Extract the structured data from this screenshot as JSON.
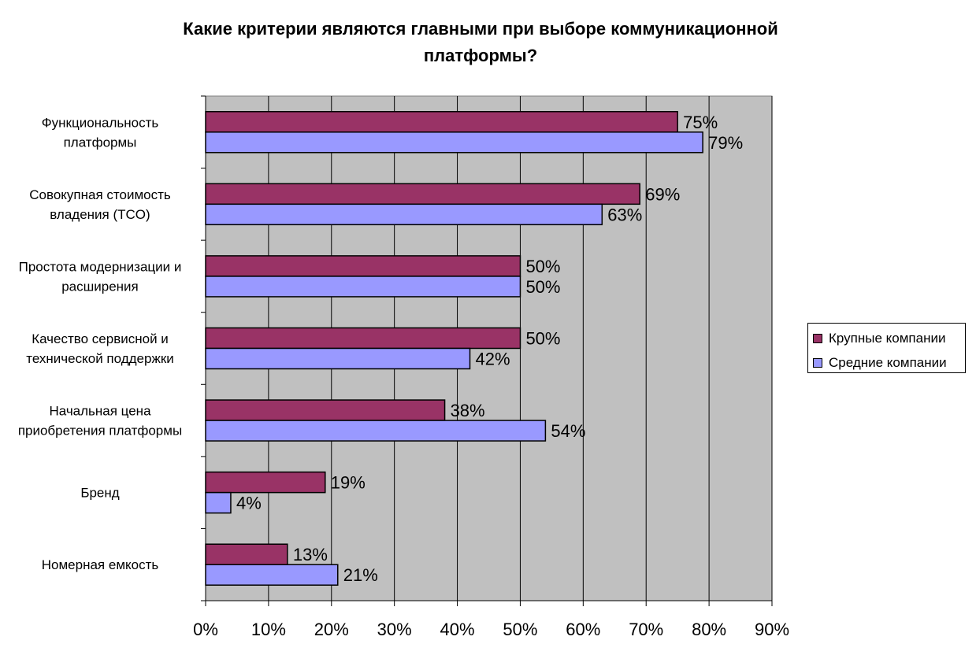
{
  "chart_data": {
    "type": "bar",
    "orientation": "horizontal",
    "title": [
      "Какие критерии являются главными при выборе коммуникационной",
      "платформы?"
    ],
    "categories": [
      [
        "Функциональность",
        "платформы"
      ],
      [
        "Совокупная стоимость",
        "владения (TCO)"
      ],
      [
        "Простота модернизации и",
        "расширения"
      ],
      [
        "Качество сервисной и",
        "технической поддержки"
      ],
      [
        "Начальная цена",
        "приобретения платформы"
      ],
      [
        "Бренд"
      ],
      [
        "Номерная емкость"
      ]
    ],
    "series": [
      {
        "name": "Крупные компании",
        "color": "#993366",
        "values": [
          75,
          69,
          50,
          50,
          38,
          19,
          13
        ],
        "labels": [
          "75%",
          "69%",
          "50%",
          "50%",
          "38%",
          "19%",
          "13%"
        ]
      },
      {
        "name": "Средние компании",
        "color": "#9999FF",
        "values": [
          79,
          63,
          50,
          42,
          54,
          4,
          21
        ],
        "labels": [
          "79%",
          "63%",
          "50%",
          "42%",
          "54%",
          "4%",
          "21%"
        ]
      }
    ],
    "xlim": [
      0,
      90
    ],
    "xticks": [
      "0%",
      "10%",
      "20%",
      "30%",
      "40%",
      "50%",
      "60%",
      "70%",
      "80%",
      "90%"
    ],
    "plot_background": "#C0C0C0",
    "grid": true,
    "legend_position": "right"
  }
}
